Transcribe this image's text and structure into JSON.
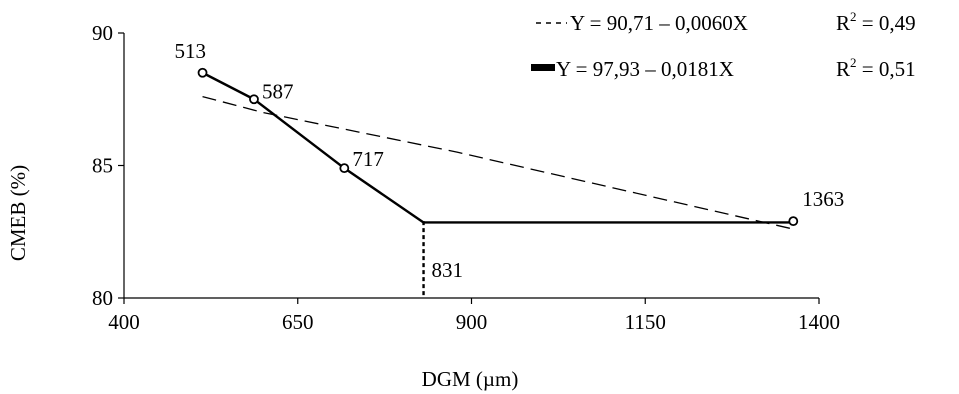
{
  "chart_data": {
    "type": "scatter",
    "xlabel": "DGM (µm)",
    "ylabel": "CMEB (%)",
    "xlim": [
      400,
      1400
    ],
    "ylim": [
      80,
      90
    ],
    "x_ticks": [
      400,
      650,
      900,
      1150,
      1400
    ],
    "y_ticks": [
      80,
      85,
      90
    ],
    "x_tick_labels": [
      "400",
      "650",
      "900",
      "1150",
      "1400"
    ],
    "y_tick_labels": [
      "80",
      "85",
      "90"
    ],
    "grid": false,
    "legend_position": "top-right",
    "observed_points": [
      {
        "x": 513,
        "y": 88.5,
        "label": "513"
      },
      {
        "x": 587,
        "y": 87.5,
        "label": "587"
      },
      {
        "x": 717,
        "y": 84.9,
        "label": "717"
      },
      {
        "x": 1363,
        "y": 82.9,
        "label": "1363"
      }
    ],
    "breakpoint": {
      "x": 831,
      "y": 82.9,
      "label": "831"
    },
    "series": [
      {
        "style": "dashed",
        "equation": "Y = 90,71 – 0,0060X",
        "r2_label": "R",
        "r2_sup": "2",
        "r2_value": " = 0,49",
        "x": [
          513,
          600,
          880,
          1363
        ],
        "y": [
          87.6,
          87.0,
          85.5,
          82.6
        ]
      },
      {
        "style": "solid",
        "equation": "Y = 97,93 – 0,0181X",
        "r2_label": "R",
        "r2_sup": "2",
        "r2_value": " = 0,51",
        "x": [
          513,
          587,
          717,
          831,
          1363
        ],
        "y": [
          88.5,
          87.5,
          84.9,
          82.85,
          82.85
        ]
      }
    ]
  }
}
